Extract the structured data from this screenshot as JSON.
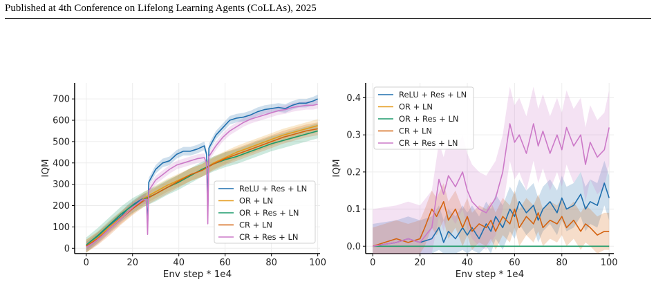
{
  "page": {
    "header": "Published at 4th Conference on Lifelong Learning Agents (CoLLAs), 2025"
  },
  "colors": {
    "relu_res_ln": "#1f6fae",
    "or_ln": "#e59a1b",
    "or_res_ln": "#1a9a6a",
    "cr_ln": "#d4620f",
    "cr_res_ln": "#cc79c8"
  },
  "chart_data": [
    {
      "type": "line",
      "title": "",
      "xlabel": "Env step * 1e4",
      "ylabel": "IQM",
      "xlim": [
        -5,
        101
      ],
      "ylim": [
        -25,
        775
      ],
      "xticks": [
        0,
        20,
        40,
        60,
        80,
        100
      ],
      "yticks": [
        0,
        100,
        200,
        300,
        400,
        500,
        600,
        700
      ],
      "grid": true,
      "legend": "lower-right",
      "shaded_band": "uncertainty",
      "series": [
        {
          "name": "ReLU + Res + LN",
          "color_key": "relu_res_ln",
          "band": 20,
          "x": [
            0,
            3,
            6,
            9,
            12,
            15,
            18,
            21,
            24,
            26,
            26.5,
            27,
            30,
            33,
            36,
            39,
            42,
            45,
            48,
            51,
            52,
            52.5,
            53,
            56,
            59,
            62,
            65,
            68,
            71,
            74,
            77,
            80,
            83,
            86,
            89,
            92,
            95,
            98,
            100
          ],
          "y": [
            10,
            35,
            65,
            95,
            125,
            150,
            185,
            210,
            230,
            240,
            100,
            310,
            370,
            400,
            410,
            440,
            455,
            455,
            465,
            480,
            440,
            175,
            470,
            530,
            565,
            600,
            610,
            615,
            625,
            640,
            650,
            655,
            660,
            655,
            670,
            680,
            680,
            690,
            700
          ]
        },
        {
          "name": "OR + LN",
          "color_key": "or_ln",
          "band": 30,
          "x": [
            0,
            5,
            10,
            15,
            20,
            25,
            30,
            35,
            40,
            45,
            50,
            55,
            60,
            65,
            70,
            75,
            80,
            85,
            90,
            95,
            100
          ],
          "y": [
            10,
            50,
            100,
            145,
            190,
            235,
            265,
            295,
            320,
            345,
            365,
            400,
            425,
            450,
            470,
            490,
            510,
            530,
            545,
            560,
            575
          ]
        },
        {
          "name": "OR + Res + LN",
          "color_key": "or_res_ln",
          "band": 35,
          "x": [
            0,
            5,
            10,
            15,
            20,
            25,
            30,
            35,
            40,
            45,
            50,
            55,
            60,
            65,
            70,
            75,
            80,
            85,
            90,
            95,
            100
          ],
          "y": [
            15,
            60,
            110,
            160,
            200,
            230,
            255,
            285,
            310,
            340,
            370,
            395,
            415,
            430,
            450,
            470,
            490,
            505,
            520,
            535,
            550
          ]
        },
        {
          "name": "CR + LN",
          "color_key": "cr_ln",
          "band": 30,
          "x": [
            0,
            5,
            10,
            15,
            20,
            25,
            30,
            35,
            40,
            45,
            50,
            55,
            60,
            65,
            70,
            75,
            80,
            85,
            90,
            95,
            100
          ],
          "y": [
            10,
            45,
            90,
            140,
            185,
            225,
            255,
            285,
            315,
            345,
            365,
            395,
            420,
            440,
            460,
            480,
            500,
            520,
            535,
            550,
            560
          ]
        },
        {
          "name": "CR + Res + LN",
          "color_key": "cr_res_ln",
          "band": 20,
          "x": [
            0,
            3,
            6,
            9,
            12,
            15,
            18,
            21,
            24,
            26,
            26.5,
            27,
            30,
            33,
            36,
            39,
            42,
            45,
            48,
            51,
            52,
            52.5,
            53,
            56,
            59,
            62,
            65,
            68,
            71,
            74,
            77,
            80,
            83,
            86,
            89,
            92,
            95,
            98,
            100
          ],
          "y": [
            5,
            25,
            50,
            80,
            110,
            140,
            170,
            200,
            225,
            230,
            65,
            270,
            320,
            345,
            370,
            390,
            400,
            410,
            420,
            425,
            400,
            115,
            430,
            480,
            520,
            550,
            570,
            590,
            605,
            615,
            625,
            635,
            645,
            650,
            660,
            665,
            670,
            670,
            675
          ]
        }
      ]
    },
    {
      "type": "line",
      "title": "",
      "xlabel": "Env step * 1e4",
      "ylabel": "IQM",
      "xlim": [
        -3,
        102
      ],
      "ylim": [
        -0.02,
        0.44
      ],
      "xticks": [
        0,
        20,
        40,
        60,
        80,
        100
      ],
      "yticks": [
        0.0,
        0.1,
        0.2,
        0.3,
        0.4
      ],
      "ytick_labels": [
        "0.0",
        "0.1",
        "0.2",
        "0.3",
        "0.4"
      ],
      "grid": true,
      "legend": "top-left",
      "shaded_band": "uncertainty",
      "series": [
        {
          "name": "ReLU + Res + LN",
          "color_key": "relu_res_ln",
          "band": 0.06,
          "x": [
            0,
            5,
            10,
            15,
            20,
            25,
            28,
            30,
            32,
            35,
            38,
            40,
            42,
            45,
            48,
            50,
            52,
            55,
            58,
            60,
            62,
            65,
            68,
            70,
            72,
            75,
            78,
            80,
            82,
            85,
            88,
            90,
            92,
            95,
            98,
            100
          ],
          "y": [
            0,
            0.005,
            0.01,
            0.02,
            0.01,
            0.02,
            0.05,
            0.01,
            0.04,
            0.02,
            0.05,
            0.03,
            0.05,
            0.02,
            0.06,
            0.04,
            0.08,
            0.05,
            0.1,
            0.08,
            0.12,
            0.09,
            0.11,
            0.07,
            0.1,
            0.12,
            0.09,
            0.13,
            0.1,
            0.11,
            0.14,
            0.1,
            0.12,
            0.11,
            0.17,
            0.13
          ]
        },
        {
          "name": "OR + LN",
          "color_key": "or_ln",
          "band": 0.0,
          "x": [
            0,
            100
          ],
          "y": [
            0,
            0
          ]
        },
        {
          "name": "OR + Res + LN",
          "color_key": "or_res_ln",
          "band": 0.0,
          "x": [
            0,
            100
          ],
          "y": [
            0,
            0
          ]
        },
        {
          "name": "CR + LN",
          "color_key": "cr_ln",
          "band": 0.05,
          "x": [
            0,
            5,
            10,
            15,
            20,
            22,
            25,
            27,
            30,
            32,
            35,
            38,
            40,
            42,
            45,
            48,
            50,
            52,
            55,
            58,
            60,
            62,
            65,
            68,
            70,
            72,
            75,
            78,
            80,
            82,
            85,
            88,
            90,
            92,
            95,
            98,
            100
          ],
          "y": [
            0,
            0.01,
            0.02,
            0.01,
            0.02,
            0.05,
            0.1,
            0.08,
            0.12,
            0.07,
            0.1,
            0.05,
            0.08,
            0.04,
            0.06,
            0.05,
            0.07,
            0.04,
            0.08,
            0.06,
            0.1,
            0.05,
            0.08,
            0.06,
            0.09,
            0.05,
            0.07,
            0.06,
            0.08,
            0.05,
            0.07,
            0.04,
            0.06,
            0.05,
            0.03,
            0.04,
            0.04
          ]
        },
        {
          "name": "CR + Res + LN",
          "color_key": "cr_res_ln",
          "band": 0.1,
          "x": [
            0,
            5,
            10,
            15,
            20,
            25,
            28,
            30,
            32,
            35,
            38,
            40,
            42,
            45,
            48,
            50,
            52,
            55,
            58,
            60,
            62,
            65,
            68,
            70,
            72,
            75,
            78,
            80,
            82,
            85,
            88,
            90,
            92,
            95,
            98,
            100
          ],
          "y": [
            0,
            0.005,
            0.01,
            0.02,
            0.01,
            0.05,
            0.18,
            0.14,
            0.19,
            0.16,
            0.2,
            0.15,
            0.12,
            0.1,
            0.09,
            0.11,
            0.13,
            0.2,
            0.33,
            0.28,
            0.3,
            0.25,
            0.33,
            0.27,
            0.31,
            0.25,
            0.3,
            0.26,
            0.32,
            0.27,
            0.3,
            0.22,
            0.28,
            0.24,
            0.26,
            0.32
          ]
        }
      ]
    }
  ]
}
